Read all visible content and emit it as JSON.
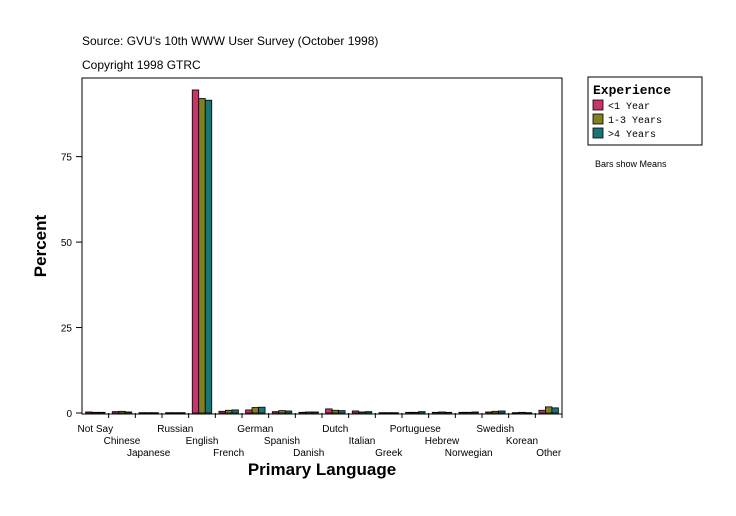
{
  "header": {
    "source": "Source: GVU's 10th WWW User Survey (October 1998)",
    "copyright": "Copyright 1998 GTRC"
  },
  "legend": {
    "title": "Experience",
    "note": "Bars show Means"
  },
  "colors": {
    "series": [
      "#c8336b",
      "#808020",
      "#1a7474"
    ]
  },
  "chart_data": {
    "type": "bar",
    "xlabel": "Primary Language",
    "ylabel": "Percent",
    "ylim": [
      0,
      98
    ],
    "yticks": [
      0,
      25,
      50,
      75
    ],
    "grid": false,
    "legend_position": "top-right",
    "categories": [
      "Not Say",
      "Chinese",
      "Japanese",
      "Russian",
      "English",
      "French",
      "German",
      "Spanish",
      "Danish",
      "Dutch",
      "Italian",
      "Greek",
      "Portuguese",
      "Hebrew",
      "Norwegian",
      "Swedish",
      "Korean",
      "Other"
    ],
    "series": [
      {
        "name": "<1 Year",
        "values": [
          0.3,
          0.4,
          0.1,
          0.1,
          94.5,
          0.5,
          0.9,
          0.4,
          0.2,
          1.2,
          0.6,
          0.1,
          0.2,
          0.2,
          0.2,
          0.3,
          0.1,
          0.8
        ]
      },
      {
        "name": "1-3 Years",
        "values": [
          0.2,
          0.5,
          0.1,
          0.1,
          92.0,
          0.8,
          1.6,
          0.7,
          0.3,
          0.8,
          0.3,
          0.1,
          0.2,
          0.3,
          0.2,
          0.5,
          0.2,
          1.8
        ]
      },
      {
        "name": ">4 Years",
        "values": [
          0.2,
          0.3,
          0.1,
          0.1,
          91.5,
          0.9,
          1.7,
          0.6,
          0.3,
          0.7,
          0.4,
          0.1,
          0.4,
          0.2,
          0.3,
          0.6,
          0.1,
          1.5
        ]
      }
    ]
  }
}
